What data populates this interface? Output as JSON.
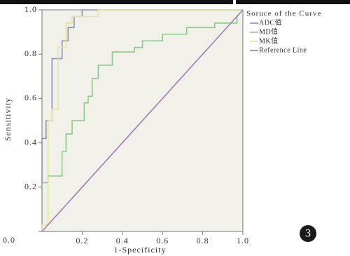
{
  "chart_data": {
    "type": "line",
    "xlabel": "1-Specificity",
    "ylabel": "Sensitivity",
    "legend_title": "Soruce of the Curve",
    "badge": "3",
    "xlim": [
      0,
      1
    ],
    "ylim": [
      0,
      1
    ],
    "xticks": [
      {
        "value": 0.2,
        "label": "0.2"
      },
      {
        "value": 0.4,
        "label": "0.4"
      },
      {
        "value": 0.6,
        "label": "0.6"
      },
      {
        "value": 0.8,
        "label": "0.8"
      },
      {
        "value": 1,
        "label": "1.0"
      }
    ],
    "yticks": [
      {
        "value": 0,
        "label": "0.0"
      },
      {
        "value": 0.2,
        "label": "0.2"
      },
      {
        "value": 0.4,
        "label": "0.4"
      },
      {
        "value": 0.6,
        "label": "0.6"
      },
      {
        "value": 0.8,
        "label": "0.8"
      },
      {
        "value": 1,
        "label": "1.0"
      }
    ],
    "series": [
      {
        "name": "ADC值",
        "color": "#8a90b8",
        "x": [
          0,
          0,
          0.02,
          0.02,
          0.05,
          0.05,
          0.1,
          0.1,
          0.13,
          0.13,
          0.16,
          0.16,
          0.2,
          0.2,
          1
        ],
        "values": [
          0,
          0.42,
          0.42,
          0.5,
          0.5,
          0.78,
          0.78,
          0.86,
          0.86,
          0.92,
          0.92,
          0.97,
          0.97,
          1,
          1
        ]
      },
      {
        "name": "MD值",
        "color": "#8cc98a",
        "x": [
          0,
          0,
          0.03,
          0.03,
          0.1,
          0.1,
          0.12,
          0.12,
          0.15,
          0.15,
          0.21,
          0.21,
          0.23,
          0.23,
          0.25,
          0.25,
          0.28,
          0.28,
          0.35,
          0.35,
          0.46,
          0.46,
          0.5,
          0.5,
          0.6,
          0.6,
          0.72,
          0.72,
          0.86,
          0.86,
          0.97,
          0.97,
          1
        ],
        "values": [
          0,
          0.22,
          0.22,
          0.25,
          0.25,
          0.36,
          0.36,
          0.44,
          0.44,
          0.5,
          0.5,
          0.58,
          0.58,
          0.61,
          0.61,
          0.69,
          0.69,
          0.75,
          0.75,
          0.81,
          0.81,
          0.83,
          0.83,
          0.86,
          0.86,
          0.89,
          0.89,
          0.92,
          0.92,
          0.94,
          0.94,
          0.97,
          1
        ]
      },
      {
        "name": "MK值",
        "color": "#e6e2a6",
        "x": [
          0,
          0,
          0.03,
          0.03,
          0.05,
          0.05,
          0.08,
          0.08,
          0.12,
          0.12,
          0.15,
          0.15,
          0.28,
          0.28,
          1
        ],
        "values": [
          0,
          0.03,
          0.03,
          0.5,
          0.5,
          0.55,
          0.55,
          0.83,
          0.83,
          0.94,
          0.94,
          0.97,
          0.97,
          1,
          1
        ]
      },
      {
        "name": "Reference Line",
        "color": "#a07ab8",
        "x": [
          0,
          1
        ],
        "values": [
          0,
          1
        ]
      }
    ]
  }
}
